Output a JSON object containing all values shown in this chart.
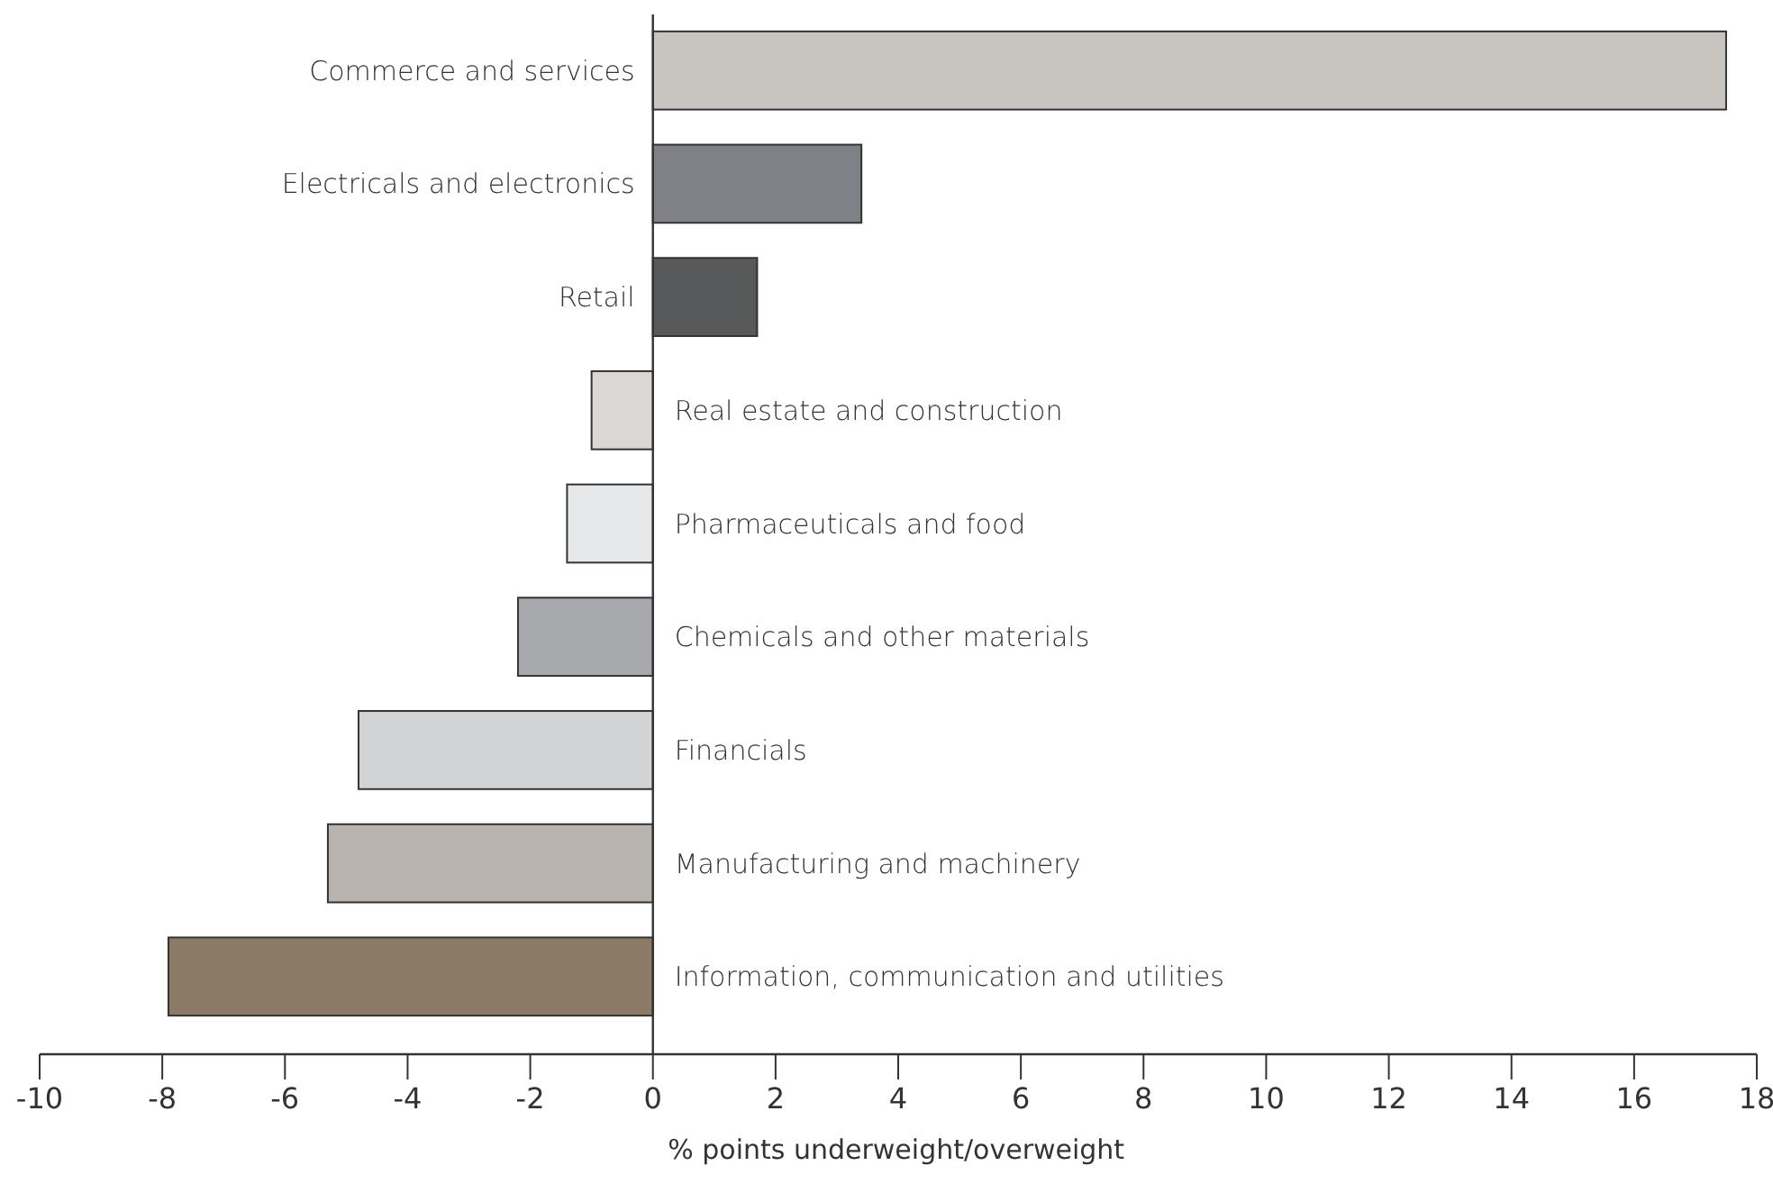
{
  "chart_data": {
    "type": "bar",
    "orientation": "horizontal",
    "xlabel": "% points underweight/overweight",
    "categories": [
      "Commerce and services",
      "Electricals and electronics",
      "Retail",
      "Real estate and construction",
      "Pharmaceuticals and food",
      "Chemicals and other materials",
      "Financials",
      "Manufacturing and machinery",
      "Information, communication and utilities"
    ],
    "values": [
      17.5,
      3.4,
      1.7,
      -1.0,
      -1.4,
      -2.2,
      -4.8,
      -5.3,
      -7.9
    ],
    "colors": [
      "#c8c5c0",
      "#808186",
      "#58595b",
      "#dad7d5",
      "#e6e7e8",
      "#a7a9ac",
      "#d1d3d4",
      "#b8b3ae",
      "#8a7a66"
    ],
    "xlim": [
      -10,
      18
    ],
    "xticks": [
      -10,
      -8,
      -6,
      -4,
      -2,
      0,
      2,
      4,
      6,
      8,
      10,
      12,
      14,
      16,
      18
    ]
  }
}
